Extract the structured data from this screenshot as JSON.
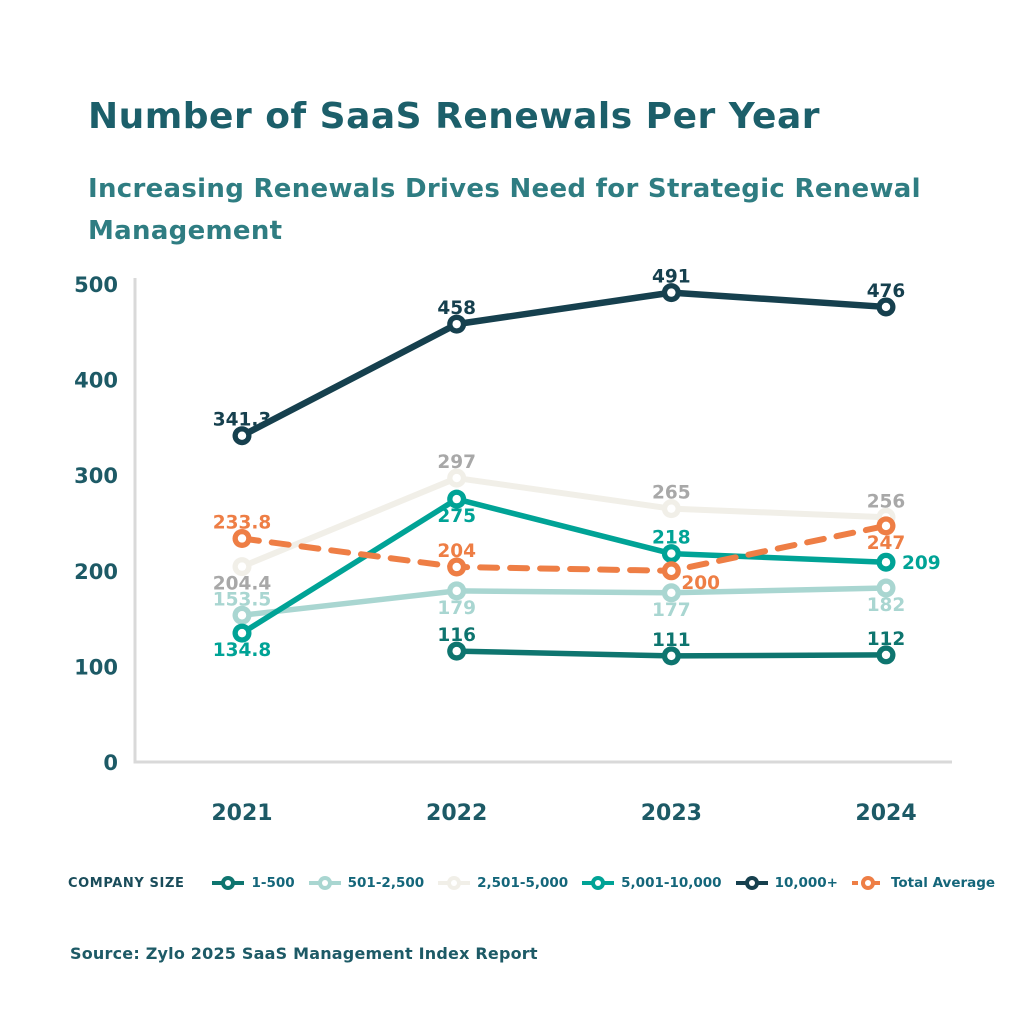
{
  "title": "Number of SaaS Renewals Per Year",
  "subtitle": "Increasing Renewals Drives Need for Strategic Renewal Management",
  "source": "Source: Zylo 2025 SaaS Management Index Report",
  "legend": {
    "heading": "COMPANY SIZE",
    "position": "bottom"
  },
  "colors": {
    "title": "#1C5F6A",
    "subtitle": "#2F7D82",
    "axis_line": "#D9D9D9",
    "axis_text": "#1D5A66"
  },
  "chart_data": {
    "type": "line",
    "title": "Number of SaaS Renewals Per Year",
    "categories": [
      "2021",
      "2022",
      "2023",
      "2024"
    ],
    "ylim": [
      0,
      500
    ],
    "yticks": [
      0,
      100,
      200,
      300,
      400,
      500
    ],
    "grid": false,
    "legend_position": "bottom",
    "draw_order": [
      1,
      2,
      0,
      3,
      4,
      5
    ],
    "series": [
      {
        "name": "1-500",
        "color": "#0E756F",
        "values": [
          null,
          116,
          111,
          112
        ],
        "label_pos": [
          "",
          "above",
          "above",
          "above"
        ],
        "dash": false,
        "width": 5.5
      },
      {
        "name": "501-2,500",
        "color": "#A9D6D1",
        "values": [
          153.5,
          179,
          177,
          182
        ],
        "label_pos": [
          "above",
          "below",
          "below",
          "below"
        ],
        "dash": false,
        "width": 5.5
      },
      {
        "name": "2,501-5,000",
        "color": "#F1EFE8",
        "label_color": "#A8A8A8",
        "values": [
          204.4,
          297,
          265,
          256
        ],
        "label_pos": [
          "below",
          "above",
          "above",
          "above"
        ],
        "dash": false,
        "width": 6
      },
      {
        "name": "5,001-10,000",
        "color": "#00A396",
        "values": [
          134.8,
          275,
          218,
          209
        ],
        "label_pos": [
          "below",
          "below",
          "above",
          "right"
        ],
        "dash": false,
        "width": 5.5
      },
      {
        "name": "10,000+",
        "color": "#16404E",
        "values": [
          341.3,
          458,
          491,
          476
        ],
        "label_pos": [
          "above",
          "above",
          "above",
          "above"
        ],
        "dash": false,
        "width": 6.5
      },
      {
        "name": "Total Average",
        "color": "#EE7E45",
        "values": [
          233.8,
          204,
          200,
          247
        ],
        "label_pos": [
          "above",
          "above",
          "below-right",
          "below"
        ],
        "dash": true,
        "width": 6
      }
    ]
  }
}
